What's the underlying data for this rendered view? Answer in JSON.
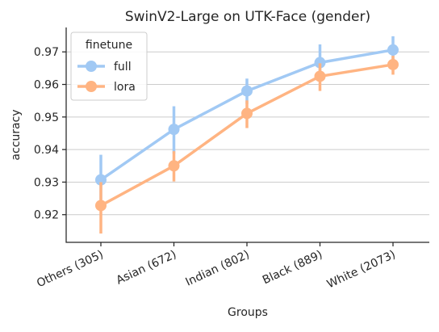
{
  "chart_data": {
    "type": "line",
    "title": "SwinV2-Large on UTK-Face (gender)",
    "xlabel": "Groups",
    "ylabel": "accuracy",
    "categories": [
      "Others (305)",
      "Asian (672)",
      "Indian (802)",
      "Black (889)",
      "White (2073)"
    ],
    "ylim": [
      0.9115,
      0.9775
    ],
    "yticks": [
      0.92,
      0.93,
      0.94,
      0.95,
      0.96,
      0.97
    ],
    "ytick_labels": [
      "0.92",
      "0.93",
      "0.94",
      "0.95",
      "0.96",
      "0.97"
    ],
    "grid": "horizontal",
    "legend": {
      "title": "finetune",
      "placement": "top-left"
    },
    "series": [
      {
        "name": "full",
        "color": "#a1c9f4",
        "values": [
          0.9307,
          0.9462,
          0.958,
          0.9667,
          0.9706
        ],
        "err_low": [
          0.9232,
          0.9387,
          0.954,
          0.9617,
          0.9676
        ],
        "err_high": [
          0.9384,
          0.9533,
          0.9618,
          0.9723,
          0.9748
        ]
      },
      {
        "name": "lora",
        "color": "#ffb482",
        "values": [
          0.9228,
          0.935,
          0.9511,
          0.9625,
          0.9661
        ],
        "err_low": [
          0.9142,
          0.9302,
          0.9466,
          0.958,
          0.963
        ],
        "err_high": [
          0.93,
          0.9395,
          0.9551,
          0.9665,
          0.9688
        ]
      }
    ]
  }
}
